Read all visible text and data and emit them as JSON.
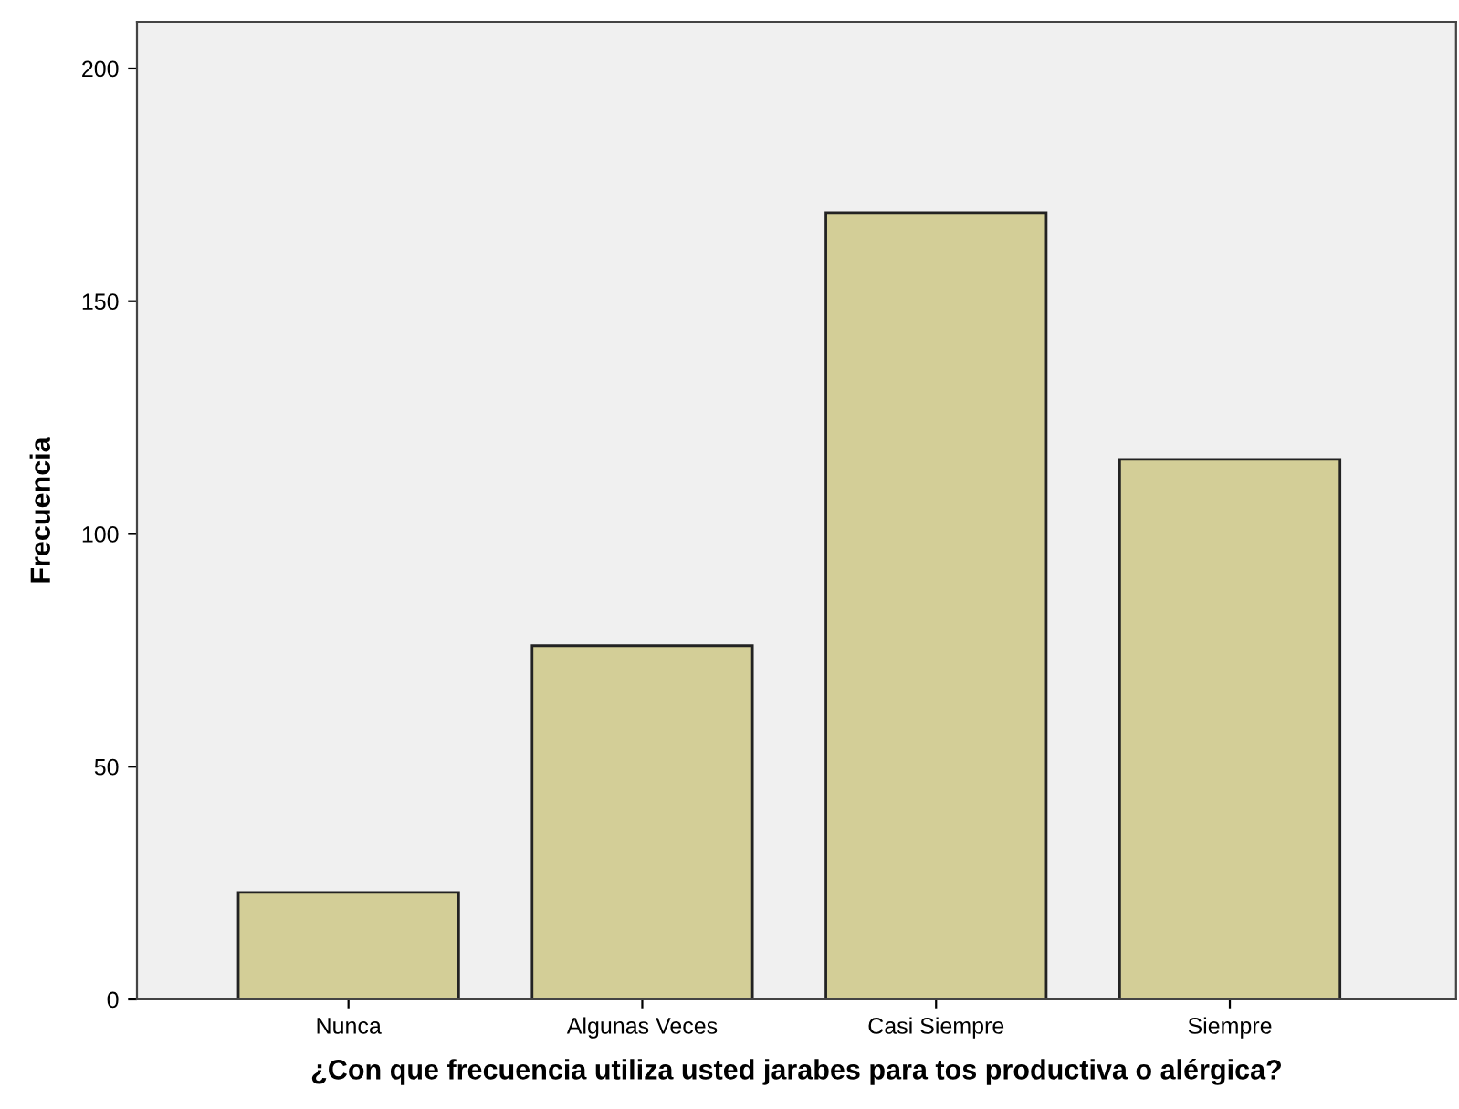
{
  "chart_data": {
    "type": "bar",
    "xlabel": "¿Con que frecuencia utiliza usted jarabes para tos productiva o alérgica?",
    "ylabel": "Frecuencia",
    "categories": [
      "Nunca",
      "Algunas Veces",
      "Casi Siempre",
      "Siempre"
    ],
    "values": [
      23,
      76,
      169,
      116
    ],
    "color": "#d3ce97",
    "ylim": [
      0,
      210
    ],
    "yticks": [
      0,
      50,
      100,
      150,
      200
    ],
    "grid": false
  }
}
